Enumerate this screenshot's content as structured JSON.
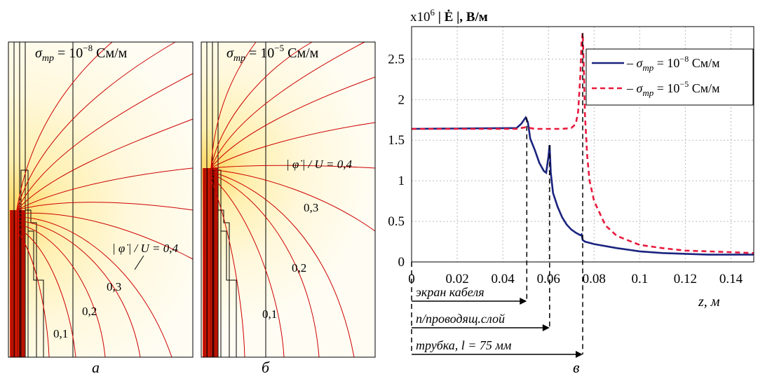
{
  "panel_a": {
    "sigma_label": "σ",
    "sigma_sub": "тр",
    "sigma_eq": " = 10",
    "sigma_exp": "−8",
    "sigma_unit": " См/м",
    "phi_label": "| φ̇ | / U = 0,4",
    "iso_labels": [
      "0,3",
      "0,2",
      "0,1"
    ],
    "caption": "а"
  },
  "panel_b": {
    "sigma_label": "σ",
    "sigma_sub": "тр",
    "sigma_eq": " = 10",
    "sigma_exp": "−5",
    "sigma_unit": " См/м",
    "phi_label": "| φ̇ | / U = 0,4",
    "iso_labels": [
      "0,3",
      "0,2",
      "0,1"
    ],
    "caption": "б"
  },
  "panel_c": {
    "caption": "в",
    "arrows": [
      "экран кабеля",
      "п/проводящ.слой",
      "трубка, l = 75 мм"
    ]
  },
  "chart_data": {
    "type": "line",
    "ylabel_prefix": "x10",
    "ylabel_exp": "6",
    "ylabel_main": " | Ė |, В/м",
    "xlabel": "z, м",
    "xlim": [
      0,
      0.15
    ],
    "ylim": [
      0,
      2.9
    ],
    "xticks": [
      0,
      0.02,
      0.04,
      0.06,
      0.08,
      0.1,
      0.12,
      0.14
    ],
    "xtick_labels": [
      "0",
      "0.02",
      "0.04",
      "0.06",
      "0.08",
      "0.1",
      "0.12",
      "0.14"
    ],
    "yticks": [
      0,
      0.5,
      1,
      1.5,
      2,
      2.5
    ],
    "ytick_labels": [
      "0",
      "0.5",
      "1",
      "1.5",
      "2",
      "2.5"
    ],
    "grid": true,
    "legend_position": "top-right",
    "series": [
      {
        "name": "σтр = 10−8 См/м",
        "legend_prefix": "– σ",
        "legend_sub": "тр",
        "legend_eq": " = 10",
        "legend_exp": "−8",
        "legend_unit": " См/м",
        "color": "#1a237e",
        "dash": "",
        "x": [
          0,
          0.046,
          0.048,
          0.05,
          0.051,
          0.052,
          0.054,
          0.056,
          0.058,
          0.059,
          0.06,
          0.0605,
          0.061,
          0.062,
          0.064,
          0.066,
          0.068,
          0.07,
          0.072,
          0.074,
          0.0745,
          0.075,
          0.076,
          0.08,
          0.09,
          0.1,
          0.11,
          0.12,
          0.13,
          0.14,
          0.15
        ],
        "y": [
          1.64,
          1.65,
          1.7,
          1.78,
          1.72,
          1.52,
          1.38,
          1.22,
          1.12,
          1.1,
          1.3,
          1.44,
          1.1,
          0.85,
          0.68,
          0.55,
          0.46,
          0.4,
          0.36,
          0.33,
          0.34,
          0.27,
          0.25,
          0.22,
          0.17,
          0.13,
          0.11,
          0.1,
          0.09,
          0.09,
          0.09
        ]
      },
      {
        "name": "σтр = 10−5 См/м",
        "legend_prefix": "– σ",
        "legend_sub": "тр",
        "legend_eq": " = 10",
        "legend_exp": "−5",
        "legend_unit": " См/м",
        "color": "#e8193c",
        "dash": "7,5",
        "x": [
          0,
          0.046,
          0.048,
          0.05,
          0.052,
          0.054,
          0.058,
          0.062,
          0.066,
          0.07,
          0.072,
          0.073,
          0.074,
          0.0745,
          0.075,
          0.0755,
          0.076,
          0.077,
          0.078,
          0.08,
          0.085,
          0.09,
          0.1,
          0.11,
          0.12,
          0.13,
          0.14,
          0.15
        ],
        "y": [
          1.64,
          1.64,
          1.65,
          1.66,
          1.65,
          1.64,
          1.64,
          1.64,
          1.64,
          1.65,
          1.7,
          1.85,
          2.3,
          2.7,
          2.82,
          2.4,
          1.8,
          1.3,
          1.0,
          0.75,
          0.45,
          0.32,
          0.21,
          0.17,
          0.14,
          0.13,
          0.12,
          0.11
        ]
      }
    ]
  }
}
